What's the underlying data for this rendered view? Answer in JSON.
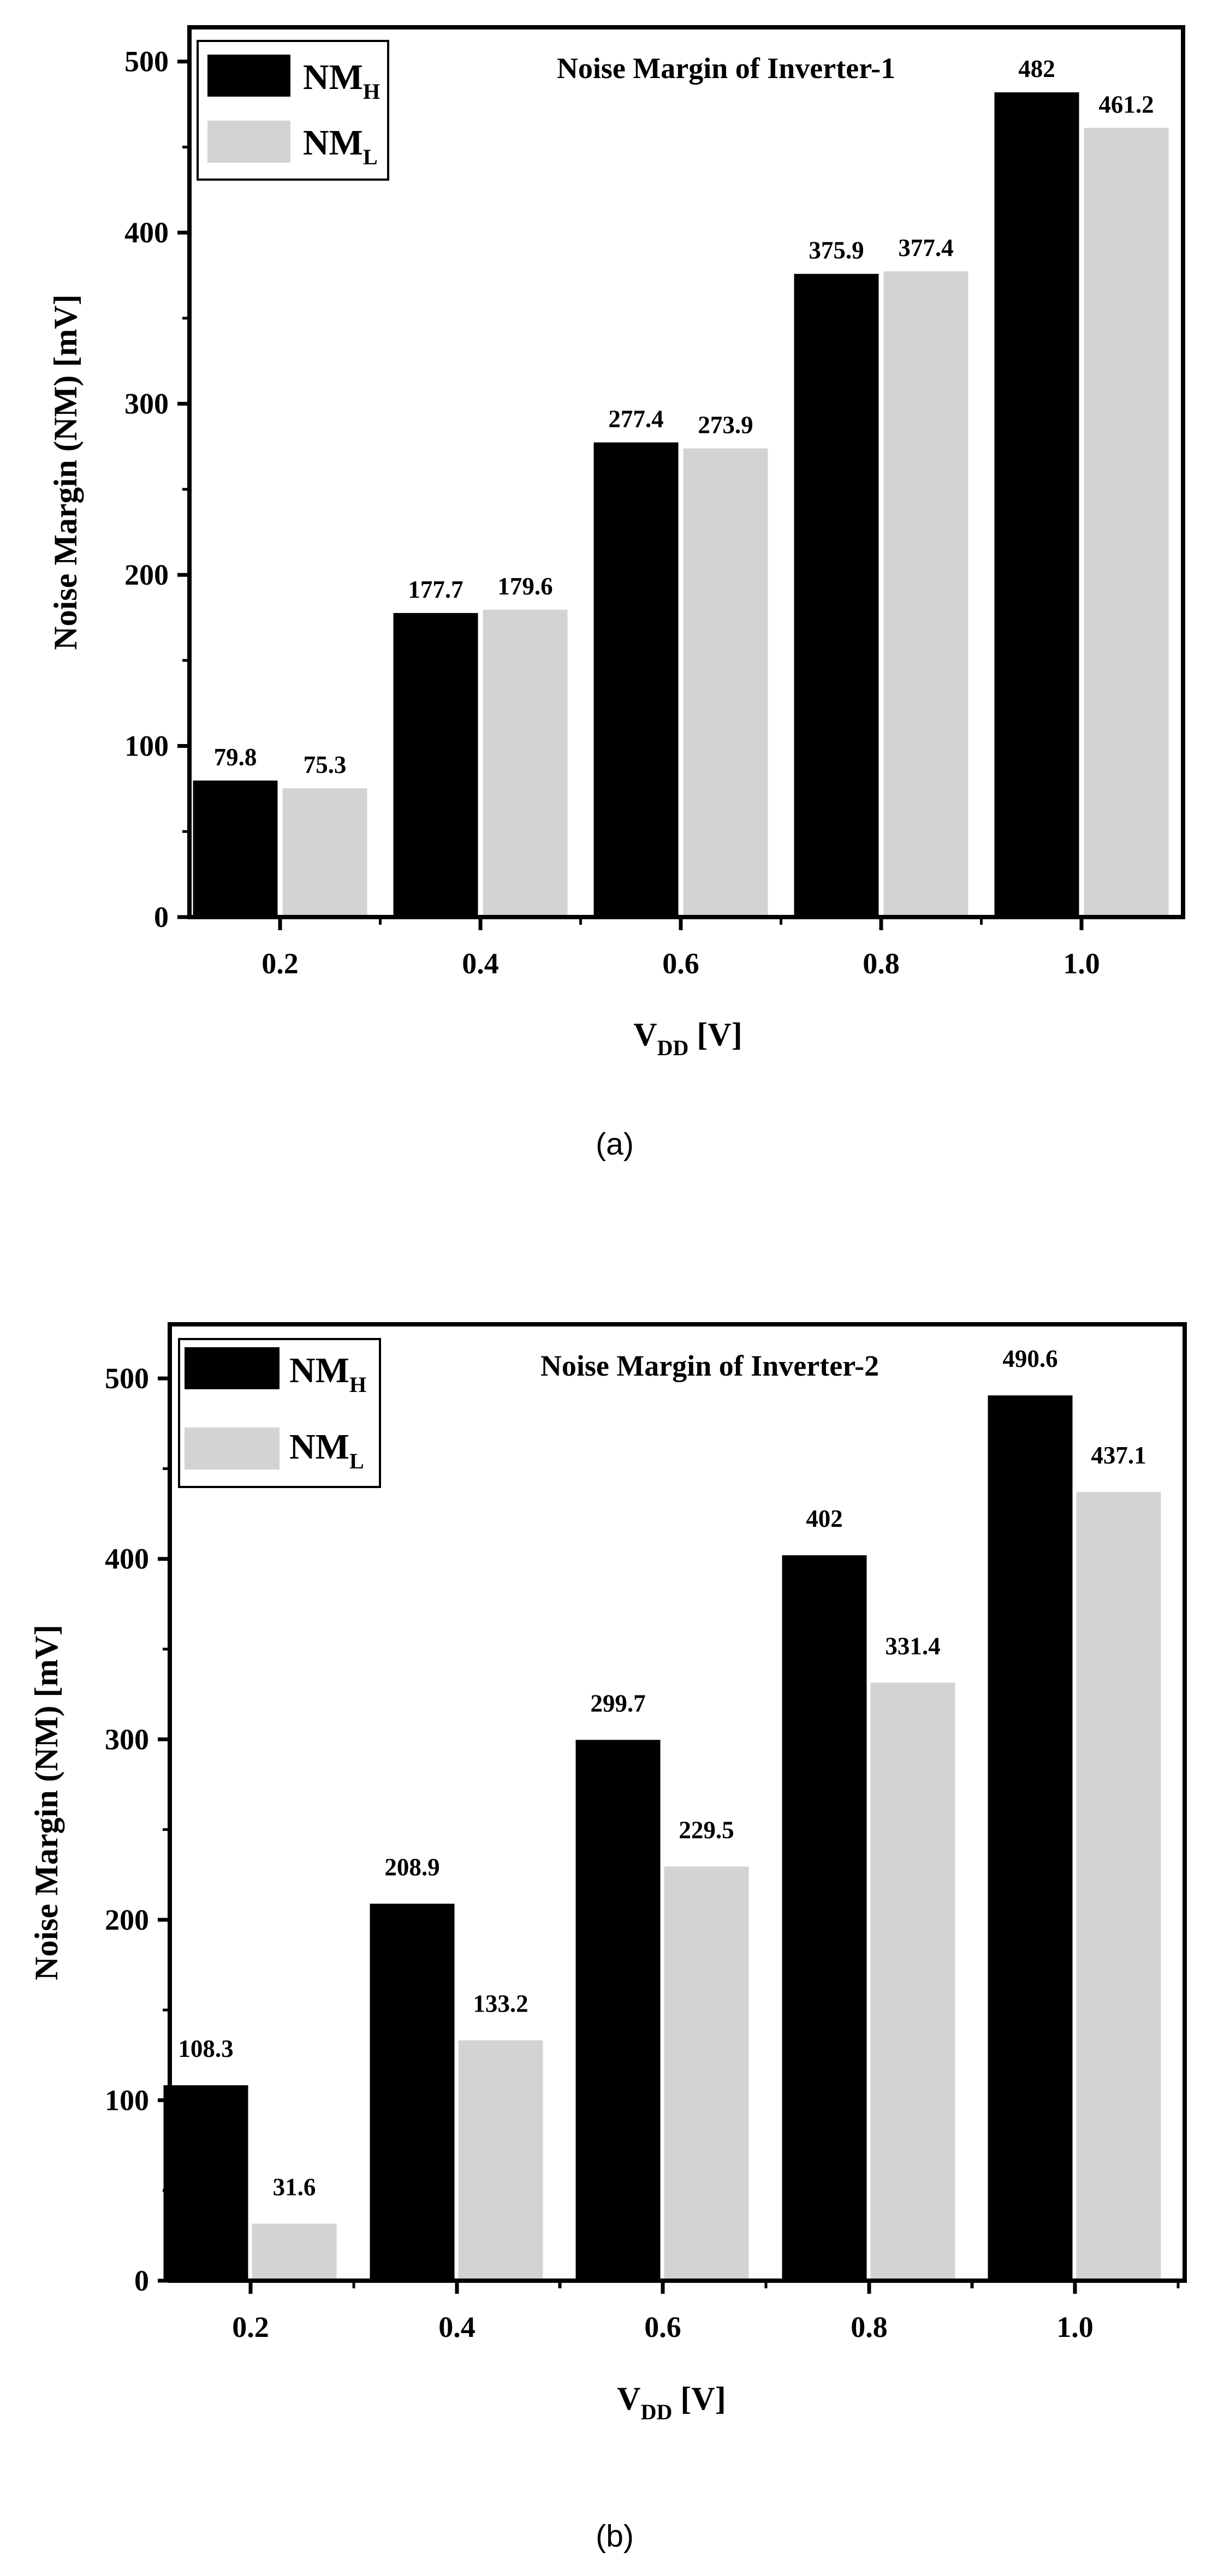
{
  "colors": {
    "nmh": "#000000",
    "nml": "#d3d3d3",
    "axis": "#000000"
  },
  "chart_data": [
    {
      "panel": "a",
      "type": "bar",
      "title": "Noise Margin of Inverter-1",
      "categories": [
        "0.2",
        "0.4",
        "0.6",
        "0.8",
        "1.0"
      ],
      "series": [
        {
          "name": "NM_H",
          "label_main": "NM",
          "label_sub": "H",
          "values": [
            79.8,
            177.7,
            277.4,
            375.9,
            482
          ]
        },
        {
          "name": "NM_L",
          "label_main": "NM",
          "label_sub": "L",
          "values": [
            75.3,
            179.6,
            273.9,
            377.4,
            461.2
          ]
        }
      ],
      "value_labels": [
        [
          "79.8",
          "177.7",
          "277.4",
          "375.9",
          "482"
        ],
        [
          "75.3",
          "179.6",
          "273.9",
          "377.4",
          "461.2"
        ]
      ],
      "ylim": [
        0,
        520
      ],
      "yticks": [
        "0",
        "100",
        "200",
        "300",
        "400",
        "500"
      ],
      "ylabel": "Noise Margin (NM) [mV]",
      "xlabel_main": "V",
      "xlabel_sub": "DD",
      "xlabel_unit": " [V]",
      "legend": "top-left",
      "caption": "(a)"
    },
    {
      "panel": "b",
      "type": "bar",
      "title": "Noise Margin of Inverter-2",
      "categories": [
        "0.2",
        "0.4",
        "0.6",
        "0.8",
        "1.0"
      ],
      "series": [
        {
          "name": "NM_H",
          "label_main": "NM",
          "label_sub": "H",
          "values": [
            108.3,
            208.9,
            299.7,
            402,
            490.6
          ]
        },
        {
          "name": "NM_L",
          "label_main": "NM",
          "label_sub": "L",
          "values": [
            31.6,
            133.2,
            229.5,
            331.4,
            437.1
          ]
        }
      ],
      "value_labels": [
        [
          "108.3",
          "208.9",
          "299.7",
          "402",
          "490.6"
        ],
        [
          "31.6",
          "133.2",
          "229.5",
          "331.4",
          "437.1"
        ]
      ],
      "ylim": [
        0,
        530
      ],
      "yticks": [
        "0",
        "100",
        "200",
        "300",
        "400",
        "500"
      ],
      "ylabel": "Noise Margin (NM) [mV]",
      "xlabel_main": "V",
      "xlabel_sub": "DD",
      "xlabel_unit": " [V]",
      "legend": "top-left",
      "caption": "(b)"
    }
  ]
}
